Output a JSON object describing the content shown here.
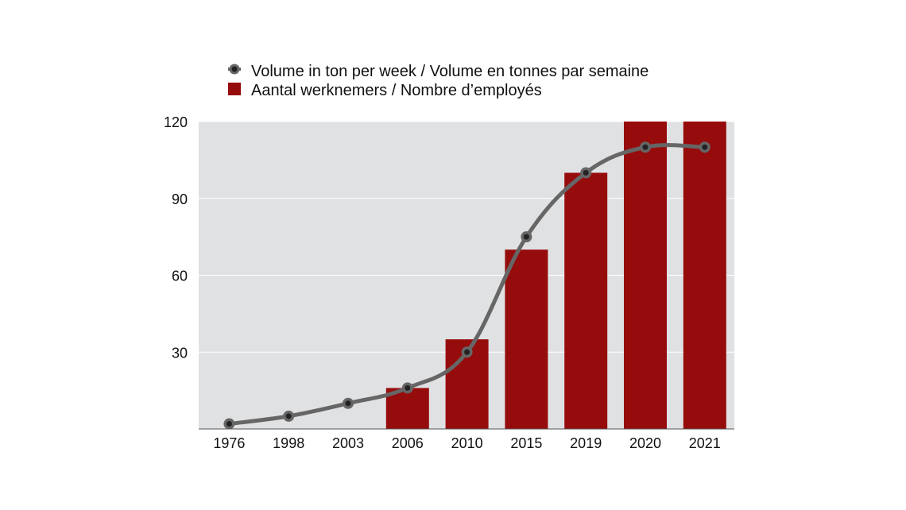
{
  "chart_data": {
    "type": "bar",
    "title": "",
    "xlabel": "",
    "ylabel": "",
    "categories": [
      "1976",
      "1998",
      "2003",
      "2006",
      "2010",
      "2015",
      "2019",
      "2020",
      "2021"
    ],
    "ylim": [
      0,
      120
    ],
    "yticks": [
      30,
      60,
      90,
      120
    ],
    "grid": true,
    "legend_position": "top",
    "series": [
      {
        "name": "Aantal werknemers / Nombre d’employés",
        "type": "bar",
        "color": "#960c0c",
        "values": [
          0,
          0,
          0,
          16,
          35,
          70,
          100,
          120,
          120
        ]
      },
      {
        "name": "Volume in ton per week / Volume en tonnes par semaine",
        "type": "line",
        "color": "#666666",
        "marker_color": "#222222",
        "values": [
          2,
          5,
          10,
          16,
          30,
          75,
          100,
          110,
          110
        ]
      }
    ],
    "plot_background": "#e0e1e3",
    "gridline_color": "#ffffff"
  }
}
